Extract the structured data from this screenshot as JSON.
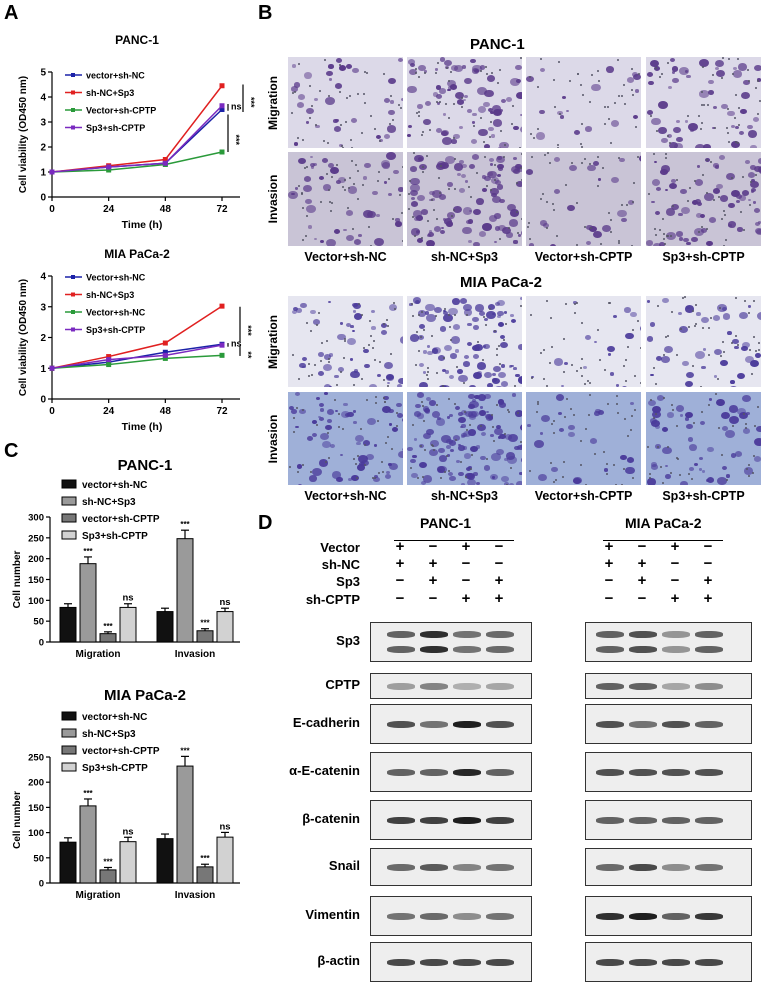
{
  "panels": {
    "a": "A",
    "b": "B",
    "c": "C",
    "d": "D"
  },
  "chart_data": [
    {
      "type": "line",
      "panel": "A",
      "title": "PANC-1",
      "xlabel": "Time (h)",
      "ylabel": "Cell viability (OD450 nm)",
      "x": [
        0,
        24,
        48,
        72
      ],
      "xticks": [
        "0",
        "24",
        "48",
        "72"
      ],
      "ylim": [
        0,
        5
      ],
      "yticks": [
        "0",
        "1",
        "2",
        "3",
        "4",
        "5"
      ],
      "series": [
        {
          "name": "vector+sh-NC",
          "color": "#1c22a8",
          "values": [
            1,
            1.2,
            1.35,
            3.5
          ]
        },
        {
          "name": "sh-NC+Sp3",
          "color": "#e02020",
          "values": [
            1,
            1.25,
            1.5,
            4.45
          ]
        },
        {
          "name": "Vector+sh-CPTP",
          "color": "#2a9a3a",
          "values": [
            1,
            1.08,
            1.3,
            1.8
          ]
        },
        {
          "name": "Sp3+sh-CPTP",
          "color": "#7a2ac0",
          "values": [
            1,
            1.2,
            1.35,
            3.65
          ]
        }
      ],
      "annotations": [
        "ns",
        "***",
        "***"
      ],
      "legend": "top-left"
    },
    {
      "type": "line",
      "panel": "A",
      "title": "MIA PaCa-2",
      "xlabel": "Time (h)",
      "ylabel": "Cell viability (OD450 nm)",
      "x": [
        0,
        24,
        48,
        72
      ],
      "xticks": [
        "0",
        "24",
        "48",
        "72"
      ],
      "ylim": [
        0,
        4
      ],
      "yticks": [
        "0",
        "1",
        "2",
        "3",
        "4"
      ],
      "series": [
        {
          "name": "Vector+sh-NC",
          "color": "#1c22a8",
          "values": [
            1,
            1.2,
            1.52,
            1.78
          ]
        },
        {
          "name": "sh-NC+Sp3",
          "color": "#e02020",
          "values": [
            1,
            1.38,
            1.82,
            3.02
          ]
        },
        {
          "name": "Vector+sh-NC",
          "color": "#2a9a3a",
          "values": [
            1,
            1.12,
            1.32,
            1.42
          ]
        },
        {
          "name": "Sp3+sh-CPTP",
          "color": "#7a2ac0",
          "values": [
            1,
            1.28,
            1.42,
            1.75
          ]
        }
      ],
      "annotations": [
        "ns",
        "***",
        "**"
      ],
      "legend": "top-left"
    },
    {
      "type": "bar",
      "panel": "C",
      "title": "PANC-1",
      "ylabel": "Cell number",
      "categories": [
        "Migration",
        "Invasion"
      ],
      "ylim": [
        0,
        300
      ],
      "yticks": [
        "0",
        "50",
        "100",
        "150",
        "200",
        "250",
        "300"
      ],
      "series": [
        {
          "name": "vector+sh-NC",
          "color": "#111111",
          "values": [
            83,
            73
          ],
          "labels": [
            "",
            ""
          ]
        },
        {
          "name": "sh-NC+Sp3",
          "color": "#9a9a9a",
          "values": [
            188,
            248
          ],
          "labels": [
            "***",
            "***"
          ]
        },
        {
          "name": "vector+sh-CPTP",
          "color": "#777777",
          "values": [
            20,
            27
          ],
          "labels": [
            "***",
            "***"
          ]
        },
        {
          "name": "Sp3+sh-CPTP",
          "color": "#d2d2d2",
          "values": [
            83,
            73
          ],
          "labels": [
            "ns",
            "ns"
          ]
        }
      ],
      "legend": "top"
    },
    {
      "type": "bar",
      "panel": "C",
      "title": "MIA PaCa-2",
      "ylabel": "Cell number",
      "categories": [
        "Migration",
        "Invasion"
      ],
      "ylim": [
        0,
        250
      ],
      "yticks": [
        "0",
        "50",
        "100",
        "150",
        "200",
        "250"
      ],
      "series": [
        {
          "name": "vector+sh-NC",
          "color": "#111111",
          "values": [
            81,
            88
          ],
          "labels": [
            "",
            ""
          ]
        },
        {
          "name": "sh-NC+Sp3",
          "color": "#9a9a9a",
          "values": [
            153,
            232
          ],
          "labels": [
            "***",
            "***"
          ]
        },
        {
          "name": "vector+sh-CPTP",
          "color": "#777777",
          "values": [
            26,
            32
          ],
          "labels": [
            "***",
            "***"
          ]
        },
        {
          "name": "Sp3+sh-CPTP",
          "color": "#d2d2d2",
          "values": [
            82,
            91
          ],
          "labels": [
            "ns",
            "ns"
          ]
        }
      ],
      "legend": "top"
    }
  ],
  "micro": {
    "top_title": "PANC-1",
    "bottom_title": "MIA PaCa-2",
    "rows": [
      "Migration",
      "Invasion"
    ],
    "columns": [
      "Vector+sh-NC",
      "sh-NC+Sp3",
      "Vector+sh-CPTP",
      "Sp3+sh-CPTP"
    ]
  },
  "blot": {
    "left_title": "PANC-1",
    "right_title": "MIA PaCa-2",
    "conditions": [
      {
        "name": "Vector",
        "signs": [
          "+",
          "−",
          "+",
          "−"
        ]
      },
      {
        "name": "sh-NC",
        "signs": [
          "+",
          "+",
          "−",
          "−"
        ]
      },
      {
        "name": "Sp3",
        "signs": [
          "−",
          "+",
          "−",
          "+"
        ]
      },
      {
        "name": "sh-CPTP",
        "signs": [
          "−",
          "−",
          "+",
          "+"
        ]
      }
    ],
    "proteins": [
      "Sp3",
      "CPTP",
      "E-cadherin",
      "α-E-catenin",
      "β-catenin",
      "Snail",
      "Vimentin",
      "β-actin"
    ]
  }
}
